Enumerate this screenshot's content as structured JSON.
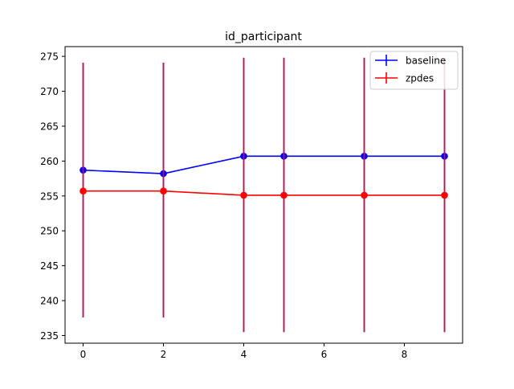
{
  "chart_data": {
    "type": "line",
    "title": "id_participant",
    "xlabel": "",
    "ylabel": "",
    "xlim": [
      -0.45,
      9.45
    ],
    "ylim": [
      233.9,
      276.4
    ],
    "xticks": [
      0,
      2,
      4,
      6,
      8
    ],
    "yticks": [
      235,
      240,
      245,
      250,
      255,
      260,
      265,
      270,
      275
    ],
    "grid": false,
    "legend_position": "top-right",
    "series": [
      {
        "name": "baseline",
        "color": "#0000ff",
        "x": [
          0,
          2,
          4,
          5,
          7,
          9
        ],
        "y": [
          258.7,
          258.2,
          260.7,
          260.7,
          260.7,
          260.7
        ],
        "error_low": [
          237.6,
          237.6,
          235.5,
          235.5,
          235.5,
          235.5
        ],
        "error_high": [
          274.1,
          274.1,
          274.8,
          274.8,
          274.8,
          274.8
        ]
      },
      {
        "name": "zpdes",
        "color": "#ff0000",
        "x": [
          0,
          2,
          4,
          5,
          7,
          9
        ],
        "y": [
          255.7,
          255.7,
          255.1,
          255.1,
          255.1,
          255.1
        ],
        "error_low": [
          237.6,
          237.6,
          235.5,
          235.5,
          235.5,
          235.5
        ],
        "error_high": [
          274.1,
          274.1,
          274.8,
          274.8,
          274.8,
          274.8
        ]
      }
    ]
  }
}
